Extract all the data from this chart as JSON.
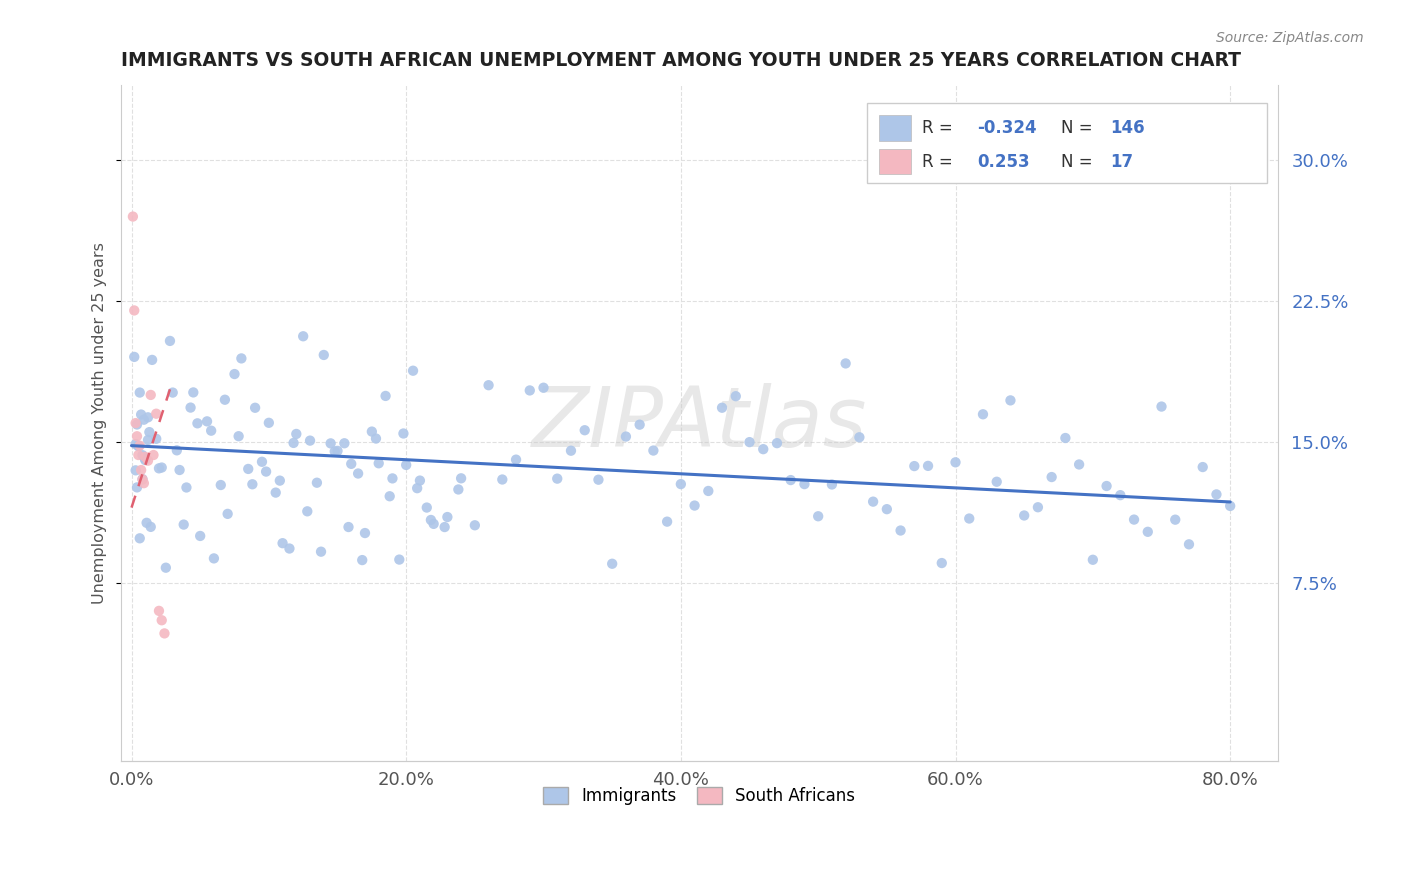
{
  "title": "IMMIGRANTS VS SOUTH AFRICAN UNEMPLOYMENT AMONG YOUTH UNDER 25 YEARS CORRELATION CHART",
  "source": "Source: ZipAtlas.com",
  "ylabel": "Unemployment Among Youth under 25 years",
  "xlim": [
    -0.008,
    0.835
  ],
  "ylim": [
    -0.02,
    0.34
  ],
  "xtick_labels": [
    "0.0%",
    "20.0%",
    "40.0%",
    "60.0%",
    "80.0%"
  ],
  "xtick_vals": [
    0.0,
    0.2,
    0.4,
    0.6,
    0.8
  ],
  "ytick_labels": [
    "7.5%",
    "15.0%",
    "22.5%",
    "30.0%"
  ],
  "ytick_vals": [
    0.075,
    0.15,
    0.225,
    0.3
  ],
  "blue_color": "#aec6e8",
  "pink_color": "#f4b8c1",
  "blue_line_color": "#4472c4",
  "pink_line_color": "#e06070",
  "watermark": "ZIPAtlas",
  "background_color": "#ffffff",
  "figsize": [
    14.06,
    8.92
  ],
  "dpi": 100,
  "blue_trend": [
    0.0,
    0.8,
    0.148,
    0.118
  ],
  "pink_trend": [
    0.0,
    0.028,
    0.115,
    0.178
  ],
  "x_blue": [
    0.002,
    0.003,
    0.003,
    0.004,
    0.004,
    0.005,
    0.005,
    0.006,
    0.006,
    0.007,
    0.008,
    0.008,
    0.009,
    0.01,
    0.01,
    0.011,
    0.012,
    0.012,
    0.013,
    0.014,
    0.015,
    0.018,
    0.022,
    0.028,
    0.033,
    0.038,
    0.02,
    0.025,
    0.03,
    0.035,
    0.04,
    0.045,
    0.05,
    0.055,
    0.06,
    0.065,
    0.07,
    0.075,
    0.08,
    0.085,
    0.09,
    0.095,
    0.1,
    0.105,
    0.11,
    0.115,
    0.12,
    0.125,
    0.13,
    0.135,
    0.14,
    0.145,
    0.15,
    0.155,
    0.16,
    0.165,
    0.17,
    0.175,
    0.18,
    0.185,
    0.19,
    0.195,
    0.2,
    0.205,
    0.21,
    0.215,
    0.22,
    0.23,
    0.24,
    0.25,
    0.26,
    0.27,
    0.28,
    0.29,
    0.3,
    0.31,
    0.32,
    0.33,
    0.34,
    0.35,
    0.36,
    0.37,
    0.38,
    0.39,
    0.4,
    0.41,
    0.42,
    0.43,
    0.44,
    0.45,
    0.46,
    0.47,
    0.48,
    0.49,
    0.5,
    0.51,
    0.52,
    0.53,
    0.54,
    0.55,
    0.56,
    0.57,
    0.58,
    0.59,
    0.6,
    0.61,
    0.62,
    0.63,
    0.64,
    0.65,
    0.66,
    0.67,
    0.68,
    0.69,
    0.7,
    0.71,
    0.72,
    0.73,
    0.74,
    0.75,
    0.76,
    0.77,
    0.78,
    0.79,
    0.8,
    0.043,
    0.048,
    0.058,
    0.068,
    0.078,
    0.088,
    0.098,
    0.108,
    0.118,
    0.128,
    0.138,
    0.148,
    0.158,
    0.168,
    0.178,
    0.188,
    0.198,
    0.208,
    0.218,
    0.228,
    0.238
  ],
  "x_pink": [
    0.001,
    0.002,
    0.003,
    0.004,
    0.005,
    0.006,
    0.007,
    0.008,
    0.009,
    0.01,
    0.012,
    0.014,
    0.016,
    0.018,
    0.02,
    0.022,
    0.024
  ],
  "y_pink": [
    0.27,
    0.22,
    0.16,
    0.153,
    0.143,
    0.148,
    0.135,
    0.13,
    0.128,
    0.142,
    0.14,
    0.175,
    0.143,
    0.165,
    0.06,
    0.055,
    0.048
  ]
}
